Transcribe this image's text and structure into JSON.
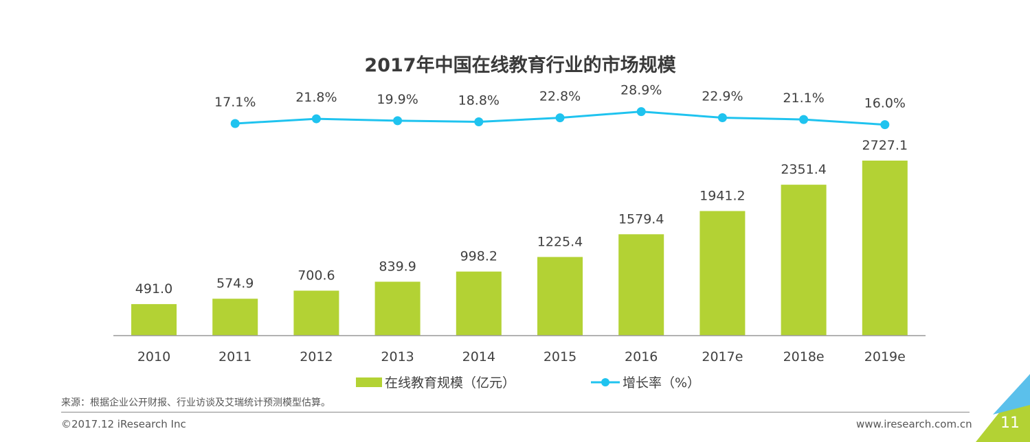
{
  "chart_data": {
    "type": "bar+line",
    "title": "2017年中国在线教育行业的市场规模",
    "categories": [
      "2010",
      "2011",
      "2012",
      "2013",
      "2014",
      "2015",
      "2016",
      "2017e",
      "2018e",
      "2019e"
    ],
    "series": [
      {
        "name": "在线教育规模（亿元）",
        "type": "bar",
        "color": "#b3d234",
        "values": [
          491.0,
          574.9,
          700.6,
          839.9,
          998.2,
          1225.4,
          1579.4,
          1941.2,
          2351.4,
          2727.1
        ],
        "labels": [
          "491.0",
          "574.9",
          "700.6",
          "839.9",
          "998.2",
          "1225.4",
          "1579.4",
          "1941.2",
          "2351.4",
          "2727.1"
        ]
      },
      {
        "name": "增长率（%）",
        "type": "line",
        "color": "#1fc3ef",
        "values": [
          null,
          17.1,
          21.8,
          19.9,
          18.8,
          22.8,
          28.9,
          22.9,
          21.1,
          16.0
        ],
        "labels": [
          "",
          "17.1%",
          "21.8%",
          "19.9%",
          "18.8%",
          "22.8%",
          "28.9%",
          "22.9%",
          "21.1%",
          "16.0%"
        ]
      }
    ],
    "legend_position": "bottom",
    "grid": false
  },
  "footer": {
    "source": "来源：根据企业公开财报、行业访谈及艾瑞统计预测模型估算。",
    "copyright": "©2017.12 iResearch Inc",
    "website": "www.iresearch.com.cn",
    "page_number": "11"
  }
}
